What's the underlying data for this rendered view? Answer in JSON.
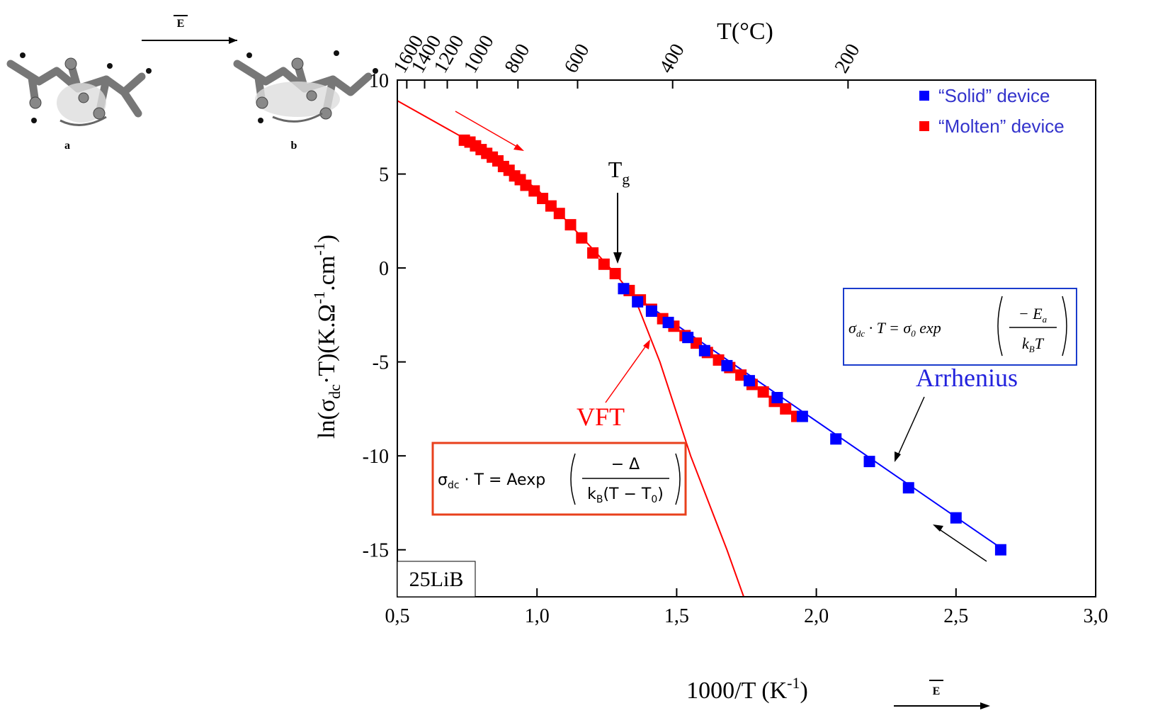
{
  "chart_data": {
    "type": "scatter",
    "x2label": "T(°C)",
    "xlabel_parts": [
      "1000/T (K",
      "-1",
      ")"
    ],
    "ylabel_parts": [
      "ln(σ",
      "dc",
      "·T)(K.Ω",
      "-1",
      ".cm",
      "-1",
      ")"
    ],
    "xlim": [
      0.5,
      3.0
    ],
    "xticks": [
      {
        "value": 0.5,
        "label": "0,5"
      },
      {
        "value": 1.0,
        "label": "1,0"
      },
      {
        "value": 1.5,
        "label": "1,5"
      },
      {
        "value": 2.0,
        "label": "2,0"
      },
      {
        "value": 2.5,
        "label": "2,5"
      },
      {
        "value": 3.0,
        "label": "3,0"
      }
    ],
    "ylim": [
      -17.5,
      10
    ],
    "yticks": [
      10,
      5,
      0,
      -5,
      -10,
      -15
    ],
    "x2ticks": [
      1600,
      1400,
      1200,
      1000,
      800,
      600,
      400,
      200
    ],
    "legend": "upper right",
    "series": [
      {
        "name": "“Solid” device",
        "color": "#0000ff",
        "x": [
          1.31,
          1.36,
          1.41,
          1.47,
          1.54,
          1.6,
          1.68,
          1.76,
          1.86,
          1.95,
          2.07,
          2.19,
          2.33,
          2.5,
          2.66
        ],
        "values": [
          -1.1,
          -1.8,
          -2.3,
          -2.9,
          -3.7,
          -4.4,
          -5.2,
          -6.0,
          -6.9,
          -7.9,
          -9.1,
          -10.3,
          -11.7,
          -13.3,
          -15.0
        ]
      },
      {
        "name": "“Molten” device",
        "color": "#ff0000",
        "x": [
          0.74,
          0.76,
          0.78,
          0.8,
          0.82,
          0.84,
          0.86,
          0.88,
          0.9,
          0.92,
          0.94,
          0.96,
          0.99,
          1.02,
          1.05,
          1.08,
          1.12,
          1.16,
          1.2,
          1.24,
          1.28,
          1.33,
          1.37,
          1.41,
          1.45,
          1.49,
          1.53,
          1.57,
          1.61,
          1.65,
          1.69,
          1.73,
          1.77,
          1.81,
          1.85,
          1.89,
          1.93
        ],
        "values": [
          6.8,
          6.7,
          6.5,
          6.3,
          6.1,
          5.9,
          5.7,
          5.4,
          5.2,
          4.9,
          4.7,
          4.4,
          4.1,
          3.7,
          3.3,
          2.9,
          2.3,
          1.6,
          0.8,
          0.2,
          -0.3,
          -1.2,
          -1.7,
          -2.2,
          -2.7,
          -3.1,
          -3.6,
          -4.0,
          -4.5,
          -4.9,
          -5.3,
          -5.7,
          -6.2,
          -6.6,
          -7.1,
          -7.5,
          -7.9
        ]
      }
    ],
    "fits": [
      {
        "color": "#ff0000",
        "x": [
          0.5,
          0.74,
          1.0,
          1.2,
          1.28,
          1.35,
          1.44,
          1.55,
          1.68,
          1.74
        ],
        "values": [
          8.9,
          6.9,
          4.2,
          1.0,
          -0.3,
          -1.6,
          -5,
          -10,
          -15,
          -17.5
        ]
      },
      {
        "color": "#0000ff",
        "x": [
          1.31,
          2.67
        ],
        "values": [
          -1.1,
          -15.0
        ]
      }
    ],
    "annotations": {
      "tg": [
        "T",
        "g"
      ],
      "vft": "VFT",
      "arrhenius": "Arrhenius",
      "sample": "25LiB"
    },
    "equations": {
      "vft": {
        "lhs": [
          "σ",
          "dc",
          " · T = Aexp"
        ],
        "numerator": "− Δ",
        "denominator": [
          "k",
          "B",
          "(T − T",
          "0",
          ")"
        ]
      },
      "arrhenius": {
        "lhs": [
          "σ",
          "dc",
          " · T = σ",
          "0",
          " exp"
        ],
        "numerator": [
          "− E",
          "a"
        ],
        "denominator": [
          "k",
          "B",
          "T"
        ]
      }
    }
  },
  "inset": {
    "arrow_label": "E",
    "labels": [
      "a",
      "b"
    ],
    "field_label": "E"
  }
}
